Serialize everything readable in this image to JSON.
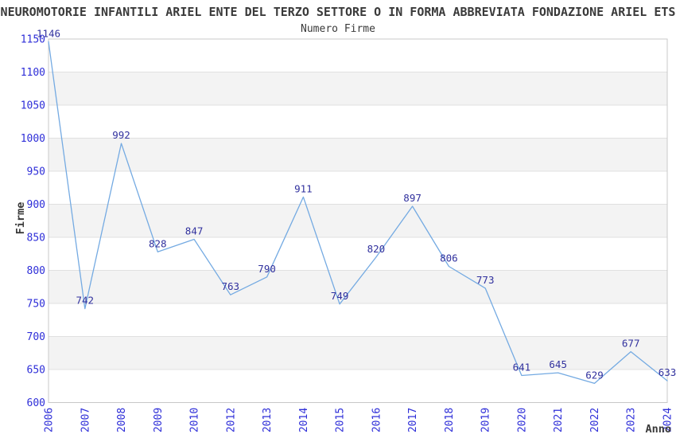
{
  "header": {
    "title": "NEUROMOTORIE INFANTILI ARIEL ENTE DEL TERZO SETTORE O IN FORMA ABBREVIATA FONDAZIONE ARIEL ETS",
    "subtitle": "Numero Firme"
  },
  "chart_data": {
    "type": "line",
    "title": "Numero Firme",
    "xlabel": "Anno",
    "ylabel": "Firme",
    "categories": [
      "2006",
      "2007",
      "2008",
      "2009",
      "2010",
      "2012",
      "2013",
      "2014",
      "2015",
      "2016",
      "2017",
      "2018",
      "2019",
      "2020",
      "2021",
      "2022",
      "2023",
      "2024"
    ],
    "values": [
      1146,
      742,
      992,
      828,
      847,
      763,
      790,
      911,
      749,
      820,
      897,
      806,
      773,
      641,
      645,
      629,
      677,
      633
    ],
    "ylim": [
      600,
      1150
    ],
    "ytick_step": 50,
    "grid": true,
    "legend": "none",
    "band_fill": "alternating horizontal bands between gridlines",
    "data_labels": true,
    "colors": {
      "line": "#74aae2",
      "tick_label": "#2e2ed8",
      "data_label": "#31319e",
      "band": "#f3f3f3",
      "gridline": "#e0e0e0",
      "border": "#c8c8c8",
      "text": "#3a3a3a",
      "background": "#ffffff"
    }
  }
}
